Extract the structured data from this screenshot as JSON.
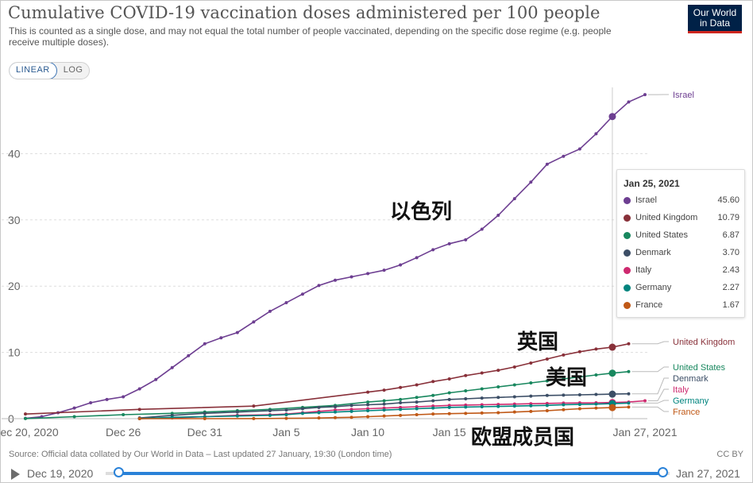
{
  "header": {
    "title": "Cumulative COVID-19 vaccination doses administered per 100 people",
    "subtitle": "This is counted as a single dose, and may not equal the total number of people vaccinated, depending on the specific dose regime (e.g. people receive multiple doses).",
    "logo_line1": "Our World",
    "logo_line2": "in Data"
  },
  "controls": {
    "linear_label": "LINEAR",
    "log_label": "LOG",
    "active_scale": "LINEAR"
  },
  "chart_data": {
    "type": "line",
    "title": "Cumulative COVID-19 vaccination doses administered per 100 people",
    "xlabel": "",
    "ylabel": "",
    "x_start": "Dec 20, 2020",
    "x_end": "Jan 27, 2021",
    "xlim_days": [
      0,
      38
    ],
    "ylim": [
      0,
      50
    ],
    "y_ticks": [
      0,
      10,
      20,
      30,
      40
    ],
    "x_ticks": [
      {
        "day": 0,
        "label": "Dec 20, 2020"
      },
      {
        "day": 6,
        "label": "Dec 26"
      },
      {
        "day": 11,
        "label": "Dec 31"
      },
      {
        "day": 16,
        "label": "Jan 5"
      },
      {
        "day": 21,
        "label": "Jan 10"
      },
      {
        "day": 26,
        "label": "Jan 15"
      },
      {
        "day": 38,
        "label": "Jan 27, 2021"
      }
    ],
    "grid": true,
    "hover_day": 36,
    "series": [
      {
        "name": "Israel",
        "color": "#6d3e91",
        "points": [
          [
            0,
            0.05
          ],
          [
            1,
            0.3
          ],
          [
            2,
            0.9
          ],
          [
            3,
            1.6
          ],
          [
            4,
            2.4
          ],
          [
            5,
            2.9
          ],
          [
            6,
            3.3
          ],
          [
            7,
            4.5
          ],
          [
            8,
            5.9
          ],
          [
            9,
            7.7
          ],
          [
            10,
            9.5
          ],
          [
            11,
            11.3
          ],
          [
            12,
            12.2
          ],
          [
            13,
            13.0
          ],
          [
            14,
            14.6
          ],
          [
            15,
            16.2
          ],
          [
            16,
            17.5
          ],
          [
            17,
            18.8
          ],
          [
            18,
            20.1
          ],
          [
            19,
            20.9
          ],
          [
            20,
            21.4
          ],
          [
            21,
            21.9
          ],
          [
            22,
            22.4
          ],
          [
            23,
            23.2
          ],
          [
            24,
            24.3
          ],
          [
            25,
            25.5
          ],
          [
            26,
            26.4
          ],
          [
            27,
            27.0
          ],
          [
            28,
            28.6
          ],
          [
            29,
            30.7
          ],
          [
            30,
            33.2
          ],
          [
            31,
            35.7
          ],
          [
            32,
            38.4
          ],
          [
            33,
            39.6
          ],
          [
            34,
            40.7
          ],
          [
            35,
            43.0
          ],
          [
            36,
            45.6
          ],
          [
            37,
            47.8
          ],
          [
            38,
            48.9
          ]
        ]
      },
      {
        "name": "United Kingdom",
        "color": "#883039",
        "points": [
          [
            0,
            0.7
          ],
          [
            7,
            1.4
          ],
          [
            14,
            1.9
          ],
          [
            21,
            4.0
          ],
          [
            22,
            4.3
          ],
          [
            23,
            4.7
          ],
          [
            24,
            5.1
          ],
          [
            25,
            5.6
          ],
          [
            26,
            6.0
          ],
          [
            27,
            6.5
          ],
          [
            28,
            6.9
          ],
          [
            29,
            7.3
          ],
          [
            30,
            7.8
          ],
          [
            31,
            8.4
          ],
          [
            32,
            9.0
          ],
          [
            33,
            9.6
          ],
          [
            34,
            10.1
          ],
          [
            35,
            10.5
          ],
          [
            36,
            10.79
          ],
          [
            37,
            11.3
          ]
        ]
      },
      {
        "name": "United States",
        "color": "#18875e",
        "points": [
          [
            0,
            0.01
          ],
          [
            3,
            0.3
          ],
          [
            6,
            0.6
          ],
          [
            9,
            0.8
          ],
          [
            11,
            1.0
          ],
          [
            13,
            1.2
          ],
          [
            15,
            1.4
          ],
          [
            17,
            1.7
          ],
          [
            19,
            2.0
          ],
          [
            21,
            2.5
          ],
          [
            22,
            2.7
          ],
          [
            23,
            2.9
          ],
          [
            24,
            3.2
          ],
          [
            25,
            3.5
          ],
          [
            26,
            3.9
          ],
          [
            27,
            4.2
          ],
          [
            28,
            4.5
          ],
          [
            29,
            4.8
          ],
          [
            30,
            5.1
          ],
          [
            31,
            5.4
          ],
          [
            32,
            5.7
          ],
          [
            33,
            6.0
          ],
          [
            34,
            6.3
          ],
          [
            35,
            6.6
          ],
          [
            36,
            6.87
          ],
          [
            37,
            7.1
          ]
        ]
      },
      {
        "name": "Denmark",
        "color": "#3c4e66",
        "points": [
          [
            7,
            0.1
          ],
          [
            9,
            0.5
          ],
          [
            11,
            0.8
          ],
          [
            13,
            1.0
          ],
          [
            15,
            1.2
          ],
          [
            16,
            1.3
          ],
          [
            17,
            1.5
          ],
          [
            18,
            1.7
          ],
          [
            19,
            1.8
          ],
          [
            20,
            2.0
          ],
          [
            21,
            2.1
          ],
          [
            22,
            2.2
          ],
          [
            23,
            2.4
          ],
          [
            24,
            2.5
          ],
          [
            25,
            2.7
          ],
          [
            26,
            2.9
          ],
          [
            27,
            3.0
          ],
          [
            28,
            3.1
          ],
          [
            29,
            3.2
          ],
          [
            30,
            3.3
          ],
          [
            31,
            3.4
          ],
          [
            32,
            3.5
          ],
          [
            33,
            3.55
          ],
          [
            34,
            3.6
          ],
          [
            35,
            3.65
          ],
          [
            36,
            3.7
          ],
          [
            37,
            3.75
          ]
        ]
      },
      {
        "name": "Italy",
        "color": "#ce2a6f",
        "points": [
          [
            7,
            0.01
          ],
          [
            9,
            0.1
          ],
          [
            11,
            0.3
          ],
          [
            13,
            0.5
          ],
          [
            15,
            0.6
          ],
          [
            16,
            0.7
          ],
          [
            17,
            0.9
          ],
          [
            18,
            1.1
          ],
          [
            19,
            1.3
          ],
          [
            20,
            1.4
          ],
          [
            21,
            1.5
          ],
          [
            22,
            1.6
          ],
          [
            23,
            1.7
          ],
          [
            24,
            1.8
          ],
          [
            25,
            1.9
          ],
          [
            26,
            2.0
          ],
          [
            27,
            2.05
          ],
          [
            28,
            2.1
          ],
          [
            29,
            2.15
          ],
          [
            30,
            2.2
          ],
          [
            31,
            2.25
          ],
          [
            32,
            2.3
          ],
          [
            33,
            2.35
          ],
          [
            34,
            2.38
          ],
          [
            35,
            2.4
          ],
          [
            36,
            2.43
          ],
          [
            37,
            2.5
          ],
          [
            38,
            2.7
          ]
        ]
      },
      {
        "name": "Germany",
        "color": "#00847e",
        "points": [
          [
            7,
            0.01
          ],
          [
            9,
            0.2
          ],
          [
            11,
            0.3
          ],
          [
            13,
            0.4
          ],
          [
            15,
            0.5
          ],
          [
            16,
            0.6
          ],
          [
            17,
            0.8
          ],
          [
            18,
            0.9
          ],
          [
            19,
            1.0
          ],
          [
            20,
            1.1
          ],
          [
            21,
            1.2
          ],
          [
            22,
            1.3
          ],
          [
            23,
            1.4
          ],
          [
            24,
            1.5
          ],
          [
            25,
            1.6
          ],
          [
            26,
            1.7
          ],
          [
            27,
            1.75
          ],
          [
            28,
            1.8
          ],
          [
            29,
            1.85
          ],
          [
            30,
            1.9
          ],
          [
            31,
            1.95
          ],
          [
            32,
            2.0
          ],
          [
            33,
            2.1
          ],
          [
            34,
            2.15
          ],
          [
            35,
            2.2
          ],
          [
            36,
            2.27
          ],
          [
            37,
            2.35
          ]
        ]
      },
      {
        "name": "France",
        "color": "#c05917",
        "points": [
          [
            7,
            0.0
          ],
          [
            11,
            0.0
          ],
          [
            14,
            0.01
          ],
          [
            16,
            0.05
          ],
          [
            18,
            0.1
          ],
          [
            19,
            0.15
          ],
          [
            20,
            0.2
          ],
          [
            21,
            0.3
          ],
          [
            22,
            0.4
          ],
          [
            23,
            0.5
          ],
          [
            24,
            0.6
          ],
          [
            25,
            0.7
          ],
          [
            26,
            0.75
          ],
          [
            27,
            0.8
          ],
          [
            28,
            0.85
          ],
          [
            29,
            0.9
          ],
          [
            30,
            1.0
          ],
          [
            31,
            1.1
          ],
          [
            32,
            1.2
          ],
          [
            33,
            1.35
          ],
          [
            34,
            1.5
          ],
          [
            35,
            1.6
          ],
          [
            36,
            1.67
          ],
          [
            37,
            1.75
          ]
        ]
      }
    ],
    "end_labels": [
      {
        "name": "Israel",
        "color": "#6d3e91"
      },
      {
        "name": "United Kingdom",
        "color": "#883039"
      },
      {
        "name": "United States",
        "color": "#18875e"
      },
      {
        "name": "Denmark",
        "color": "#3c4e66"
      },
      {
        "name": "Italy",
        "color": "#ce2a6f"
      },
      {
        "name": "Germany",
        "color": "#00847e"
      },
      {
        "name": "France",
        "color": "#c05917"
      }
    ]
  },
  "tooltip": {
    "date": "Jan 25, 2021",
    "rows": [
      {
        "name": "Israel",
        "value": "45.60",
        "color": "#6d3e91"
      },
      {
        "name": "United Kingdom",
        "value": "10.79",
        "color": "#883039"
      },
      {
        "name": "United States",
        "value": "6.87",
        "color": "#18875e"
      },
      {
        "name": "Denmark",
        "value": "3.70",
        "color": "#3c4e66"
      },
      {
        "name": "Italy",
        "value": "2.43",
        "color": "#ce2a6f"
      },
      {
        "name": "Germany",
        "value": "2.27",
        "color": "#00847e"
      },
      {
        "name": "France",
        "value": "1.67",
        "color": "#c05917"
      }
    ]
  },
  "annotations": {
    "israel": "以色列",
    "uk": "英国",
    "us": "美国",
    "eu": "欧盟成员国"
  },
  "footer": {
    "source": "Source: Official data collated by Our World in Data – Last updated 27 January, 19:30 (London time)",
    "license": "CC BY"
  },
  "timeline": {
    "start_label": "Dec 19, 2020",
    "end_label": "Jan 27, 2021"
  }
}
